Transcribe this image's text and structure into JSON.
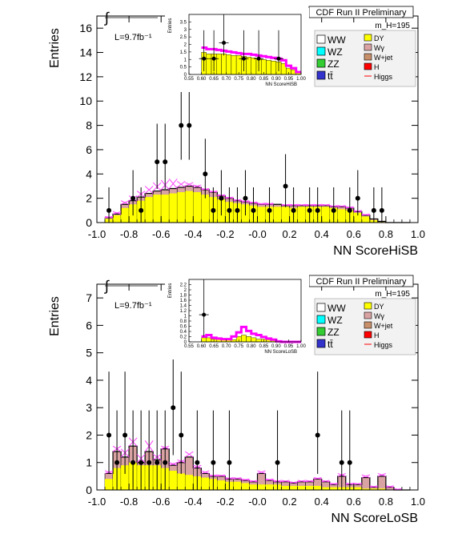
{
  "colors": {
    "dy": "#ffff00",
    "wgamma": "#e0b0b0",
    "wjet": "#d8a888",
    "higgs_line": "#ff00ff",
    "wgamma_hist": "#d9a3a3",
    "uncert": "#ff44ff"
  },
  "legend": {
    "left": [
      "WW",
      "WZ",
      "ZZ",
      "tt̄"
    ],
    "right": [
      "DY",
      "Wγ",
      "W+jet",
      "H",
      "Higgs"
    ],
    "left_colors": [
      "#ffffff",
      "#00ffff",
      "#33cc33",
      "#3333cc"
    ],
    "right_colors": [
      "#ffff00",
      "#d9a3a3",
      "#c8906a",
      "#ff0000",
      "#ff0000"
    ]
  },
  "chart_data": [
    {
      "type": "bar",
      "id": "top",
      "banner": "CDF Run II Preliminary",
      "mass_label": "m_H=195",
      "lumi": "L=9.7fb⁻¹",
      "ylabel": "Entries",
      "xlabel": "NN ScoreHiSB",
      "xlim": [
        -1.0,
        1.0
      ],
      "ylim": [
        0,
        17
      ],
      "xticks": [
        -1.0,
        -0.8,
        -0.6,
        -0.4,
        -0.2,
        -0.0,
        0.2,
        0.4,
        0.6,
        0.8,
        1.0
      ],
      "xtick_labels": [
        "-1.0",
        "-0.8",
        "-0.6",
        "-0.4",
        "-0.2",
        "-0.0",
        "0.2",
        "0.4",
        "0.6",
        "0.8",
        "1.0"
      ],
      "yticks": [
        0,
        2,
        4,
        6,
        8,
        10,
        12,
        14,
        16
      ],
      "bin_edges_start": -0.95,
      "bin_width": 0.05,
      "dy": [
        0.3,
        0.6,
        1.2,
        1.5,
        1.8,
        2.1,
        2.3,
        2.3,
        2.4,
        2.5,
        2.6,
        2.5,
        2.3,
        2.1,
        1.9,
        1.7,
        1.6,
        1.5,
        1.4,
        1.3,
        1.3,
        1.3,
        1.3,
        1.2,
        1.3,
        1.3,
        1.3,
        1.3,
        1.2,
        1.1,
        1.0,
        0.8,
        0.5,
        0.2,
        0.05,
        0.0,
        0.0,
        0.0
      ],
      "total": [
        0.4,
        0.7,
        1.5,
        1.8,
        2.1,
        2.4,
        2.6,
        2.7,
        2.8,
        2.9,
        3.0,
        2.9,
        2.7,
        2.5,
        2.2,
        2.0,
        1.8,
        1.7,
        1.6,
        1.5,
        1.5,
        1.5,
        1.4,
        1.4,
        1.4,
        1.4,
        1.4,
        1.4,
        1.3,
        1.3,
        1.2,
        0.9,
        0.6,
        0.3,
        0.1,
        0.0,
        0.0,
        0.0
      ],
      "uncert": [
        0.5,
        0.9,
        1.8,
        2.2,
        2.6,
        3.0,
        3.3,
        3.5,
        3.6,
        3.4,
        3.3,
        3.1,
        2.8,
        2.6,
        2.3,
        2.1,
        1.9,
        1.8,
        1.7,
        1.6,
        1.6,
        1.5,
        1.5,
        1.5,
        1.5,
        1.5,
        1.5,
        1.5,
        1.4,
        1.4,
        1.3,
        1.0,
        0.7,
        0.3,
        0.1,
        0.0,
        0.0,
        0.0
      ],
      "data_points": [
        {
          "x": -0.925,
          "y": 1
        },
        {
          "x": -0.775,
          "y": 2
        },
        {
          "x": -0.725,
          "y": 1
        },
        {
          "x": -0.625,
          "y": 5
        },
        {
          "x": -0.575,
          "y": 5
        },
        {
          "x": -0.475,
          "y": 8
        },
        {
          "x": -0.425,
          "y": 8
        },
        {
          "x": -0.325,
          "y": 4
        },
        {
          "x": -0.275,
          "y": 1
        },
        {
          "x": -0.225,
          "y": 2
        },
        {
          "x": -0.175,
          "y": 1
        },
        {
          "x": -0.125,
          "y": 1
        },
        {
          "x": -0.075,
          "y": 2
        },
        {
          "x": -0.025,
          "y": 1
        },
        {
          "x": 0.075,
          "y": 1
        },
        {
          "x": 0.175,
          "y": 3
        },
        {
          "x": 0.225,
          "y": 1
        },
        {
          "x": 0.325,
          "y": 1
        },
        {
          "x": 0.375,
          "y": 1
        },
        {
          "x": 0.475,
          "y": 1
        },
        {
          "x": 0.575,
          "y": 1
        },
        {
          "x": 0.625,
          "y": 2
        },
        {
          "x": 0.725,
          "y": 1
        },
        {
          "x": 0.775,
          "y": 1
        }
      ],
      "inset": {
        "xlabel": "NN ScoreHiSB",
        "ylabel": "Entries",
        "xlim": [
          0.55,
          1.0
        ],
        "ylim": [
          0,
          3.8
        ],
        "xtick_labels": [
          "0.55",
          "0.60",
          "0.65",
          "0.70",
          "0.75",
          "0.80",
          "0.85",
          "0.90",
          "0.95",
          "1.00"
        ],
        "ytick_labels": [
          "0",
          "0.5",
          "1",
          "1.5",
          "2",
          "2.5",
          "3",
          "3.5"
        ],
        "bin_edges_start": 0.6,
        "bin_width": 0.02,
        "dy": [
          1.4,
          1.3,
          1.3,
          1.3,
          1.3,
          1.25,
          1.2,
          1.2,
          1.15,
          1.1,
          1.05,
          1.0,
          0.95,
          0.9,
          0.85,
          0.8,
          0.7,
          0.4,
          0.3,
          0.1
        ],
        "higgs": [
          1.7,
          1.6,
          1.6,
          1.55,
          1.5,
          1.45,
          1.4,
          1.35,
          1.3,
          1.3,
          1.25,
          1.2,
          1.15,
          1.1,
          1.05,
          1.0,
          0.9,
          0.55,
          0.4,
          0.15
        ],
        "data_points": [
          {
            "x": 0.61,
            "y": 1
          },
          {
            "x": 0.65,
            "y": 1
          },
          {
            "x": 0.69,
            "y": 2
          },
          {
            "x": 0.77,
            "y": 1
          },
          {
            "x": 0.83,
            "y": 1
          },
          {
            "x": 0.91,
            "y": 1
          }
        ]
      }
    },
    {
      "type": "bar",
      "id": "bottom",
      "banner": "CDF Run II Preliminary",
      "mass_label": "m_H=195",
      "lumi": "L=9.7fb⁻¹",
      "ylabel": "Entries",
      "xlabel": "NN ScoreLoSB",
      "xlim": [
        -1.0,
        1.0
      ],
      "ylim": [
        0,
        7.5
      ],
      "xticks": [
        -1.0,
        -0.8,
        -0.6,
        -0.4,
        -0.2,
        -0.0,
        0.2,
        0.4,
        0.6,
        0.8,
        1.0
      ],
      "xtick_labels": [
        "-1.0",
        "-0.8",
        "-0.6",
        "-0.4",
        "-0.2",
        "-0.0",
        "0.2",
        "0.4",
        "0.6",
        "0.8",
        "1.0"
      ],
      "yticks": [
        0,
        1,
        2,
        3,
        4,
        5,
        6,
        7
      ],
      "bin_edges_start": -0.95,
      "bin_width": 0.05,
      "dy": [
        0.4,
        0.8,
        0.9,
        1.0,
        0.9,
        0.9,
        0.9,
        0.8,
        0.7,
        0.6,
        0.55,
        0.5,
        0.45,
        0.4,
        0.35,
        0.3,
        0.3,
        0.25,
        0.2,
        0.2,
        0.2,
        0.2,
        0.15,
        0.15,
        0.15,
        0.15,
        0.15,
        0.1,
        0.1,
        0.1,
        0.1,
        0.1,
        0.05,
        0.05,
        0.05,
        0.0,
        0.0,
        0.0
      ],
      "total": [
        0.6,
        1.4,
        1.2,
        1.6,
        1.0,
        1.4,
        1.1,
        1.5,
        0.9,
        1.0,
        1.2,
        0.8,
        0.6,
        0.5,
        0.5,
        0.4,
        0.4,
        0.35,
        0.3,
        0.6,
        0.35,
        0.3,
        0.3,
        0.25,
        0.3,
        0.3,
        0.4,
        0.3,
        0.2,
        0.5,
        0.2,
        0.2,
        0.45,
        0.1,
        0.5,
        0.1,
        0.0,
        0.0
      ],
      "uncert": [
        0.7,
        1.6,
        1.5,
        1.9,
        1.3,
        1.8,
        1.3,
        1.6,
        1.0,
        1.1,
        1.4,
        0.9,
        0.7,
        0.55,
        0.55,
        0.45,
        0.45,
        0.4,
        0.35,
        0.7,
        0.4,
        0.35,
        0.35,
        0.3,
        0.35,
        0.35,
        0.45,
        0.35,
        0.25,
        0.6,
        0.25,
        0.25,
        0.55,
        0.15,
        0.6,
        0.15,
        0.05,
        0.0
      ],
      "data_points": [
        {
          "x": -0.925,
          "y": 2
        },
        {
          "x": -0.875,
          "y": 1
        },
        {
          "x": -0.825,
          "y": 2
        },
        {
          "x": -0.775,
          "y": 1
        },
        {
          "x": -0.725,
          "y": 1
        },
        {
          "x": -0.675,
          "y": 1
        },
        {
          "x": -0.625,
          "y": 1
        },
        {
          "x": -0.575,
          "y": 1
        },
        {
          "x": -0.525,
          "y": 3
        },
        {
          "x": -0.475,
          "y": 2
        },
        {
          "x": -0.375,
          "y": 1
        },
        {
          "x": -0.275,
          "y": 1
        },
        {
          "x": -0.175,
          "y": 1
        },
        {
          "x": 0.125,
          "y": 1
        },
        {
          "x": 0.375,
          "y": 2
        },
        {
          "x": 0.525,
          "y": 1
        },
        {
          "x": 0.575,
          "y": 1
        }
      ],
      "inset": {
        "xlabel": "NN ScoreLoSB",
        "ylabel": "Entries",
        "xlim": [
          0.55,
          1.0
        ],
        "ylim": [
          0,
          2.3
        ],
        "xtick_labels": [
          "0.55",
          "0.60",
          "0.65",
          "0.70",
          "0.75",
          "0.80",
          "0.85",
          "0.90",
          "0.95",
          "1.00"
        ],
        "ytick_labels": [
          "0",
          "0.2",
          "0.4",
          "0.6",
          "0.8",
          "1",
          "1.2",
          "1.4",
          "1.6",
          "1.8",
          "2",
          "2.2"
        ],
        "bin_edges_start": 0.6,
        "bin_width": 0.02,
        "dy": [
          0.15,
          0.15,
          0.1,
          0.1,
          0.08,
          0.08,
          0.08,
          0.2,
          0.25,
          0.2,
          0.15,
          0.1,
          0.1,
          0.08,
          0.05,
          0.0,
          0.0,
          0.0,
          0.0,
          0.0
        ],
        "higgs": [
          0.2,
          0.25,
          0.15,
          0.12,
          0.1,
          0.1,
          0.2,
          0.35,
          0.55,
          0.4,
          0.3,
          0.25,
          0.18,
          0.12,
          0.08,
          0.02,
          0.0,
          0.0,
          0.0,
          0.0
        ],
        "data_points": [
          {
            "x": 0.61,
            "y": 1
          }
        ]
      }
    }
  ]
}
